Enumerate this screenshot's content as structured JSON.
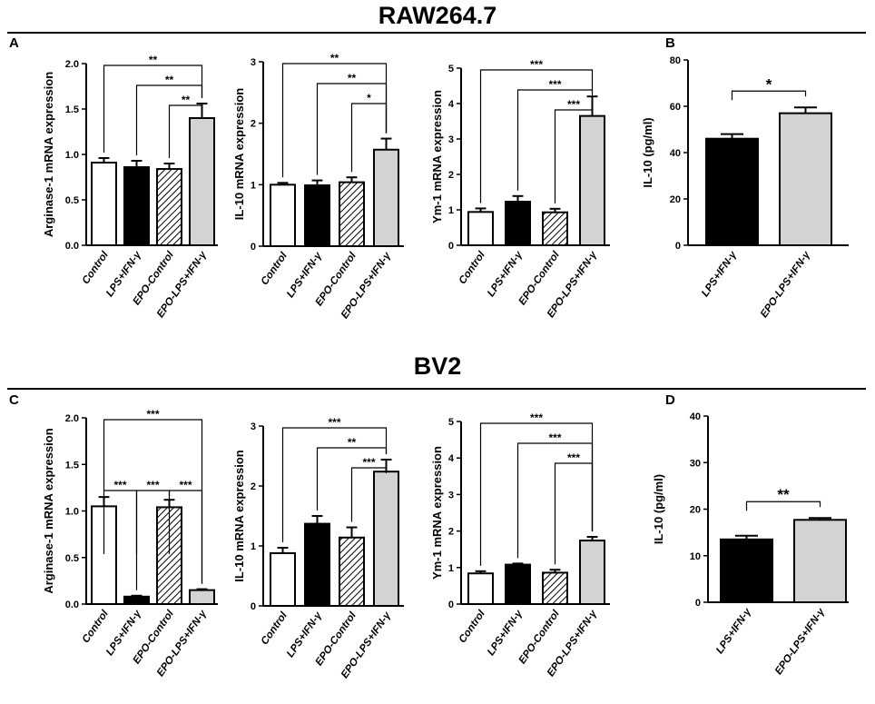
{
  "figure": {
    "section_top": "RAW264.7",
    "section_bottom": "BV2"
  },
  "colors": {
    "control": "#ffffff",
    "lps": "#000000",
    "epo_control": "hatched",
    "epo_lps": "#d3d3d3",
    "axis": "#000000"
  },
  "chart_data": [
    {
      "id": "A1",
      "panel": "A",
      "type": "bar",
      "ylabel": "Arginase-1 mRNA expression",
      "ylim": [
        0,
        2.0
      ],
      "yticks": [
        "0.0",
        "0.5",
        "1.0",
        "1.5",
        "2.0"
      ],
      "ytick_values": [
        0,
        0.5,
        1.0,
        1.5,
        2.0
      ],
      "categories": [
        "Control",
        "LPS+IFN-γ",
        "EPO-Control",
        "EPO-LPS+IFN-γ"
      ],
      "values": [
        0.91,
        0.86,
        0.84,
        1.4
      ],
      "errors": [
        0.05,
        0.07,
        0.06,
        0.16
      ],
      "fills": [
        "control",
        "lps",
        "epo_control",
        "epo_lps"
      ],
      "significance": [
        {
          "from": 0,
          "to": 3,
          "label": "**"
        },
        {
          "from": 1,
          "to": 3,
          "label": "**"
        },
        {
          "from": 2,
          "to": 3,
          "label": "**"
        }
      ]
    },
    {
      "id": "A2",
      "panel": "",
      "type": "bar",
      "ylabel": "IL-10 mRNA expression",
      "ylim": [
        0,
        3
      ],
      "yticks": [
        "0",
        "1",
        "2",
        "3"
      ],
      "ytick_values": [
        0,
        1,
        2,
        3
      ],
      "categories": [
        "Control",
        "LPS+IFN-γ",
        "EPO-Control",
        "EPO-LPS+IFN-γ"
      ],
      "values": [
        1.0,
        0.99,
        1.04,
        1.57
      ],
      "errors": [
        0.03,
        0.08,
        0.08,
        0.18
      ],
      "fills": [
        "control",
        "lps",
        "epo_control",
        "epo_lps"
      ],
      "significance": [
        {
          "from": 0,
          "to": 3,
          "label": "**"
        },
        {
          "from": 1,
          "to": 3,
          "label": "**"
        },
        {
          "from": 2,
          "to": 3,
          "label": "*"
        }
      ]
    },
    {
      "id": "A3",
      "panel": "",
      "type": "bar",
      "ylabel": "Ym-1 mRNA expression",
      "ylim": [
        0,
        5
      ],
      "yticks": [
        "0",
        "1",
        "2",
        "3",
        "4",
        "5"
      ],
      "ytick_values": [
        0,
        1,
        2,
        3,
        4,
        5
      ],
      "categories": [
        "Control",
        "LPS+IFN-γ",
        "EPO-Control",
        "EPO-LPS+IFN-γ"
      ],
      "values": [
        0.94,
        1.23,
        0.93,
        3.65
      ],
      "errors": [
        0.1,
        0.16,
        0.1,
        0.55
      ],
      "fills": [
        "control",
        "lps",
        "epo_control",
        "epo_lps"
      ],
      "significance": [
        {
          "from": 0,
          "to": 3,
          "label": "***"
        },
        {
          "from": 1,
          "to": 3,
          "label": "***"
        },
        {
          "from": 2,
          "to": 3,
          "label": "***"
        }
      ]
    },
    {
      "id": "B",
      "panel": "B",
      "type": "bar",
      "ylabel": "IL-10 (pg/ml)",
      "ylim": [
        0,
        80
      ],
      "yticks": [
        "0",
        "20",
        "40",
        "60",
        "80"
      ],
      "ytick_values": [
        0,
        20,
        40,
        60,
        80
      ],
      "categories": [
        "LPS+IFN-γ",
        "EPO-LPS+IFN-γ"
      ],
      "values": [
        46,
        57
      ],
      "errors": [
        2.0,
        2.5
      ],
      "fills": [
        "lps",
        "epo_lps"
      ],
      "significance": [
        {
          "from": 0,
          "to": 1,
          "label": "*"
        }
      ]
    },
    {
      "id": "C1",
      "panel": "C",
      "type": "bar",
      "ylabel": "Arginase-1 mRNA expression",
      "ylim": [
        0,
        2.0
      ],
      "yticks": [
        "0.0",
        "0.5",
        "1.0",
        "1.5",
        "2.0"
      ],
      "ytick_values": [
        0,
        0.5,
        1.0,
        1.5,
        2.0
      ],
      "categories": [
        "Control",
        "LPS+IFN-γ",
        "EPO-Control",
        "EPO-LPS+IFN-γ"
      ],
      "values": [
        1.05,
        0.08,
        1.04,
        0.15
      ],
      "errors": [
        0.1,
        0.01,
        0.08,
        0.01
      ],
      "fills": [
        "control",
        "lps",
        "epo_control",
        "epo_lps"
      ],
      "significance": [
        {
          "from": 0,
          "to": 3,
          "label": "***"
        },
        {
          "from": 0,
          "to": 1,
          "label": "***"
        },
        {
          "from": 1,
          "to": 2,
          "label": "***"
        },
        {
          "from": 2,
          "to": 3,
          "label": "***"
        }
      ]
    },
    {
      "id": "C2",
      "panel": "",
      "type": "bar",
      "ylabel": "IL-10 mRNA expression",
      "ylim": [
        0,
        3
      ],
      "yticks": [
        "0",
        "1",
        "2",
        "3"
      ],
      "ytick_values": [
        0,
        1,
        2,
        3
      ],
      "categories": [
        "Control",
        "LPS+IFN-γ",
        "EPO-Control",
        "EPO-LPS+IFN-γ"
      ],
      "values": [
        0.88,
        1.37,
        1.14,
        2.24
      ],
      "errors": [
        0.09,
        0.13,
        0.17,
        0.2
      ],
      "fills": [
        "control",
        "lps",
        "epo_control",
        "epo_lps"
      ],
      "significance": [
        {
          "from": 0,
          "to": 3,
          "label": "***"
        },
        {
          "from": 1,
          "to": 3,
          "label": "**"
        },
        {
          "from": 2,
          "to": 3,
          "label": "***"
        }
      ]
    },
    {
      "id": "C3",
      "panel": "",
      "type": "bar",
      "ylabel": "Ym-1 mRNA expression",
      "ylim": [
        0,
        5
      ],
      "yticks": [
        "0",
        "1",
        "2",
        "3",
        "4",
        "5"
      ],
      "ytick_values": [
        0,
        1,
        2,
        3,
        4,
        5
      ],
      "categories": [
        "Control",
        "LPS+IFN-γ",
        "EPO-Control",
        "EPO-LPS+IFN-γ"
      ],
      "values": [
        0.84,
        1.08,
        0.86,
        1.74
      ],
      "errors": [
        0.06,
        0.03,
        0.08,
        0.1
      ],
      "fills": [
        "control",
        "lps",
        "epo_control",
        "epo_lps"
      ],
      "significance": [
        {
          "from": 0,
          "to": 3,
          "label": "***"
        },
        {
          "from": 1,
          "to": 3,
          "label": "***"
        },
        {
          "from": 2,
          "to": 3,
          "label": "***"
        }
      ]
    },
    {
      "id": "D",
      "panel": "D",
      "type": "bar",
      "ylabel": "IL-10 (pg/ml)",
      "ylim": [
        0,
        40
      ],
      "yticks": [
        "0",
        "10",
        "20",
        "30",
        "40"
      ],
      "ytick_values": [
        0,
        10,
        20,
        30,
        40
      ],
      "categories": [
        "LPS+IFN-γ",
        "EPO-LPS+IFN-γ"
      ],
      "values": [
        13.5,
        17.7
      ],
      "errors": [
        0.8,
        0.4
      ],
      "fills": [
        "lps",
        "epo_lps"
      ],
      "significance": [
        {
          "from": 0,
          "to": 1,
          "label": "**"
        }
      ]
    }
  ]
}
